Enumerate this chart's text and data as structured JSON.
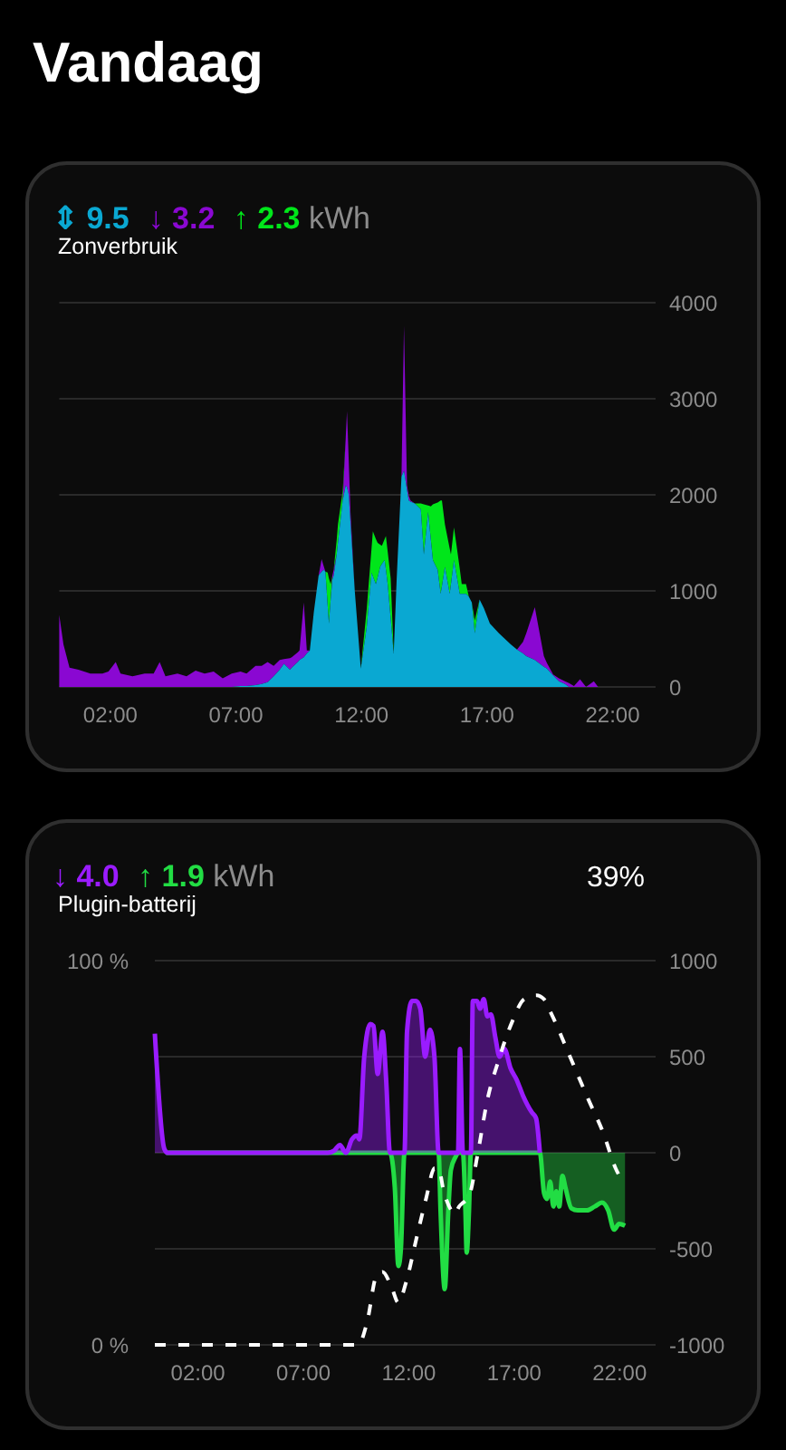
{
  "chart_data": [
    {
      "type": "other",
      "title": "Vandaag"
    },
    {
      "type": "area",
      "title": "Zonverbruik",
      "annotations": [
        "⇕ 9.5",
        "↓ 3.2",
        "↑ 2.3",
        "kWh"
      ],
      "stacked": true,
      "xlim": [
        0,
        23.75
      ],
      "xticks": [
        {
          "value": 2,
          "label": "02:00"
        },
        {
          "value": 7,
          "label": "07:00"
        },
        {
          "value": 12,
          "label": "12:00"
        },
        {
          "value": 17,
          "label": "17:00"
        },
        {
          "value": 22,
          "label": "22:00"
        }
      ],
      "ylim": [
        0,
        4000
      ],
      "yticks": [
        0,
        1000,
        2000,
        3000,
        4000
      ],
      "grid": "y",
      "x": [
        0,
        0.17,
        0.41,
        0.77,
        1.24,
        1.72,
        1.96,
        2.25,
        2.44,
        2.92,
        3.4,
        3.76,
        4.0,
        4.23,
        4.71,
        5.07,
        5.43,
        5.79,
        6.15,
        6.51,
        6.87,
        7.22,
        7.46,
        7.82,
        8.06,
        8.3,
        8.54,
        8.78,
        8.95,
        9.19,
        9.26,
        9.5,
        9.57,
        9.74,
        9.86,
        9.98,
        10.14,
        10.33,
        10.45,
        10.53,
        10.6,
        10.69,
        10.74,
        10.81,
        10.88,
        10.93,
        11.05,
        11.1,
        11.29,
        11.41,
        11.46,
        11.53,
        11.6,
        11.77,
        12.01,
        12.25,
        12.44,
        12.49,
        12.61,
        12.68,
        12.78,
        12.85,
        12.96,
        13.01,
        13.08,
        13.2,
        13.32,
        13.44,
        13.63,
        13.73,
        13.85,
        13.92,
        13.99,
        14.16,
        14.4,
        14.52,
        14.69,
        14.8,
        14.88,
        15.07,
        15.19,
        15.24,
        15.36,
        15.55,
        15.6,
        15.72,
        15.84,
        15.95,
        16.03,
        16.2,
        16.31,
        16.43,
        16.55,
        16.74,
        16.91,
        17.15,
        17.51,
        17.99,
        18.23,
        18.47,
        18.6,
        18.94,
        19.3,
        19.42,
        19.67,
        19.9,
        20.14,
        20.3,
        20.5,
        20.74,
        20.98,
        21.29,
        21.46
      ],
      "series": [
        {
          "color": "#0aa8d2",
          "values": [
            null,
            null,
            null,
            null,
            null,
            null,
            null,
            null,
            null,
            null,
            null,
            null,
            null,
            null,
            null,
            null,
            null,
            null,
            null,
            null,
            0,
            10,
            10,
            20,
            30,
            50,
            110,
            180,
            240,
            180,
            200,
            260,
            280,
            310,
            350,
            380,
            780,
            1160,
            1200,
            1220,
            1200,
            850,
            660,
            910,
            1120,
            1160,
            1380,
            1500,
            1940,
            2100,
            2080,
            2000,
            1710,
            1000,
            190,
            630,
            1190,
            1150,
            1070,
            1140,
            1250,
            1280,
            1320,
            1220,
            1070,
            710,
            350,
            1130,
            2190,
            2250,
            2050,
            1940,
            1930,
            1910,
            1850,
            1380,
            1820,
            1530,
            1320,
            1220,
            970,
            1050,
            1250,
            970,
            1070,
            1320,
            1140,
            970,
            970,
            970,
            940,
            880,
            560,
            910,
            820,
            660,
            560,
            440,
            390,
            350,
            320,
            280,
            210,
            190,
            120,
            60,
            30,
            0,
            null,
            null,
            null,
            null,
            null
          ]
        },
        {
          "color": "#8a08d2",
          "values": [
            750,
            440,
            200,
            180,
            140,
            140,
            160,
            260,
            140,
            110,
            140,
            140,
            260,
            110,
            140,
            110,
            170,
            140,
            160,
            90,
            140,
            150,
            130,
            200,
            190,
            210,
            110,
            100,
            50,
            120,
            110,
            100,
            100,
            570,
            30,
            0,
            null,
            0,
            130,
            40,
            0,
            null,
            null,
            0,
            40,
            60,
            0,
            null,
            0,
            500,
            790,
            350,
            110,
            0,
            null,
            null,
            null,
            null,
            null,
            null,
            null,
            null,
            null,
            null,
            null,
            null,
            null,
            null,
            0,
            1510,
            50,
            50,
            10,
            0,
            null,
            null,
            null,
            null,
            null,
            null,
            null,
            null,
            null,
            null,
            null,
            null,
            null,
            null,
            null,
            null,
            null,
            null,
            null,
            null,
            null,
            null,
            null,
            null,
            0,
            120,
            240,
            550,
            110,
            60,
            10,
            30,
            30,
            40,
            10,
            80,
            0,
            60,
            0
          ]
        },
        {
          "color": "#00e61a",
          "values": [
            null,
            null,
            null,
            null,
            null,
            null,
            null,
            null,
            null,
            null,
            null,
            null,
            null,
            null,
            null,
            null,
            null,
            null,
            null,
            null,
            null,
            null,
            null,
            null,
            null,
            null,
            null,
            null,
            null,
            null,
            null,
            null,
            null,
            null,
            null,
            null,
            null,
            null,
            null,
            null,
            0,
            340,
            470,
            160,
            0,
            0,
            150,
            190,
            100,
            0,
            null,
            null,
            null,
            null,
            0,
            190,
            260,
            470,
            470,
            360,
            230,
            190,
            220,
            350,
            340,
            420,
            0,
            null,
            null,
            null,
            null,
            null,
            null,
            0,
            60,
            520,
            70,
            350,
            580,
            700,
            970,
            890,
            440,
            470,
            310,
            340,
            300,
            260,
            100,
            100,
            0,
            0,
            130,
            0,
            null,
            null,
            null,
            null,
            null,
            null,
            null,
            null,
            null,
            null,
            null,
            null,
            null,
            null,
            null,
            null,
            null,
            null,
            null
          ]
        }
      ]
    },
    {
      "type": "area",
      "title": "Plugin-batterij",
      "annotations": [
        "↓ 4.0",
        "↑ 1.9",
        "kWh",
        "39%"
      ],
      "xlim": [
        0,
        23.75
      ],
      "xticks": [
        {
          "value": 2,
          "label": "02:00"
        },
        {
          "value": 7,
          "label": "07:00"
        },
        {
          "value": 12,
          "label": "12:00"
        },
        {
          "value": 17,
          "label": "17:00"
        },
        {
          "value": 22,
          "label": "22:00"
        }
      ],
      "ylim": [
        -1000,
        1000
      ],
      "yticks": [
        -1000,
        -500,
        0,
        500,
        1000
      ],
      "y2lim": [
        0,
        100
      ],
      "y2ticks": [
        {
          "value": 0,
          "label": "0 %"
        },
        {
          "value": 100,
          "label": "100 %"
        }
      ],
      "grid": "y",
      "series": [
        {
          "color": "#22dd44",
          "line_style": "solid",
          "x": [
            0.53,
            11.15,
            11.38,
            11.55,
            11.67,
            11.84,
            13.46,
            13.55,
            13.75,
            13.92,
            14.04,
            14.27,
            14.38,
            14.61,
            14.73,
            14.79,
            14.9,
            14.99,
            18.26,
            18.46,
            18.6,
            18.75,
            18.9,
            19.04,
            19.18,
            19.33,
            19.47,
            19.76,
            20.05,
            20.49,
            20.86,
            21.21,
            21.5,
            21.78,
            22.02,
            22.3
          ],
          "values": [
            0,
            0,
            -180,
            -590,
            -500,
            0,
            0,
            -300,
            -710,
            -300,
            -90,
            -20,
            0,
            0,
            -300,
            -520,
            -300,
            0,
            0,
            -210,
            -240,
            -150,
            -280,
            -200,
            -280,
            -120,
            -180,
            -290,
            -300,
            -300,
            -280,
            -260,
            -300,
            -400,
            -370,
            -380
          ]
        },
        {
          "color": "#9a1cff",
          "line_style": "solid",
          "x": [
            0,
            0.45,
            0.6,
            8.2,
            8.49,
            8.78,
            9.06,
            9.35,
            9.58,
            9.7,
            9.93,
            10.22,
            10.37,
            10.57,
            10.8,
            10.97,
            11.15,
            11.84,
            11.96,
            12.19,
            12.39,
            12.59,
            12.82,
            13.05,
            13.26,
            13.46,
            14.38,
            14.47,
            14.61,
            14.99,
            15.08,
            15.28,
            15.42,
            15.6,
            15.77,
            15.94,
            16.15,
            16.35,
            16.58,
            16.87,
            17.16,
            17.45,
            17.88,
            18.08,
            18.26
          ],
          "values": [
            620,
            20,
            0,
            0,
            10,
            40,
            0,
            70,
            90,
            70,
            500,
            670,
            660,
            410,
            630,
            380,
            0,
            0,
            630,
            790,
            790,
            750,
            500,
            640,
            500,
            0,
            0,
            540,
            0,
            0,
            790,
            790,
            750,
            800,
            710,
            720,
            600,
            500,
            540,
            440,
            380,
            300,
            210,
            180,
            0
          ]
        },
        {
          "type": "line",
          "axis": "y2",
          "color": "#ffffff",
          "line_style": "dashed",
          "x": [
            0,
            9.64,
            10.07,
            10.51,
            10.8,
            11.23,
            11.55,
            11.9,
            12.42,
            12.86,
            13.27,
            13.45,
            13.7,
            14.06,
            14.2,
            14.43,
            14.92,
            15.29,
            15.78,
            16.3,
            16.94,
            17.52,
            18.1,
            18.45,
            18.82,
            19.69,
            20.55,
            21.28,
            21.85,
            22.13
          ],
          "values": [
            0,
            0,
            6,
            18,
            19,
            15,
            11,
            16,
            28,
            38,
            46,
            46,
            40,
            35,
            34,
            36,
            39,
            49,
            64,
            74,
            84,
            90,
            91,
            90,
            86,
            75,
            64,
            55,
            46,
            43
          ]
        }
      ]
    }
  ]
}
